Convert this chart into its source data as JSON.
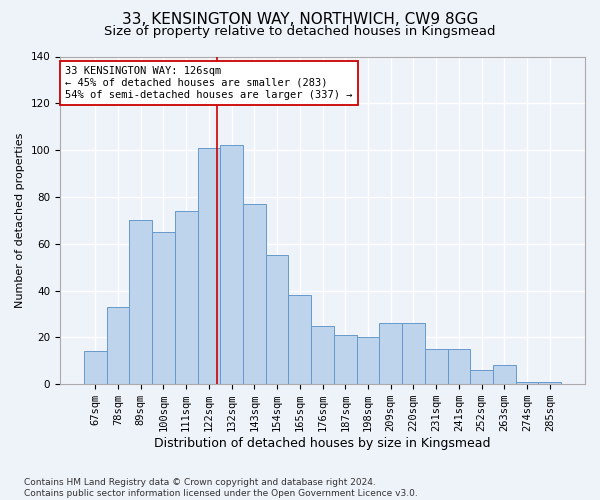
{
  "title1": "33, KENSINGTON WAY, NORTHWICH, CW9 8GG",
  "title2": "Size of property relative to detached houses in Kingsmead",
  "xlabel": "Distribution of detached houses by size in Kingsmead",
  "ylabel": "Number of detached properties",
  "categories": [
    "67sqm",
    "78sqm",
    "89sqm",
    "100sqm",
    "111sqm",
    "122sqm",
    "132sqm",
    "143sqm",
    "154sqm",
    "165sqm",
    "176sqm",
    "187sqm",
    "198sqm",
    "209sqm",
    "220sqm",
    "231sqm",
    "241sqm",
    "252sqm",
    "263sqm",
    "274sqm",
    "285sqm"
  ],
  "bar_heights": [
    14,
    33,
    70,
    65,
    74,
    101,
    102,
    77,
    55,
    38,
    25,
    21,
    20,
    26,
    26,
    15,
    15,
    6,
    8,
    1,
    1
  ],
  "bar_color": "#bed3ec",
  "bar_edge_color": "#6699cc",
  "vline_color": "#cc0000",
  "vline_x_index": 5.36,
  "annotation_text": "33 KENSINGTON WAY: 126sqm\n← 45% of detached houses are smaller (283)\n54% of semi-detached houses are larger (337) →",
  "annotation_box_facecolor": "#ffffff",
  "annotation_box_edgecolor": "#cc0000",
  "ylim": [
    0,
    140
  ],
  "yticks": [
    0,
    20,
    40,
    60,
    80,
    100,
    120,
    140
  ],
  "footer": "Contains HM Land Registry data © Crown copyright and database right 2024.\nContains public sector information licensed under the Open Government Licence v3.0.",
  "background_color": "#eef2f9",
  "grid_color": "#ffffff",
  "title1_fontsize": 11,
  "title2_fontsize": 9.5,
  "xlabel_fontsize": 9,
  "ylabel_fontsize": 8,
  "tick_fontsize": 7.5,
  "annotation_fontsize": 7.5,
  "footer_fontsize": 6.5
}
